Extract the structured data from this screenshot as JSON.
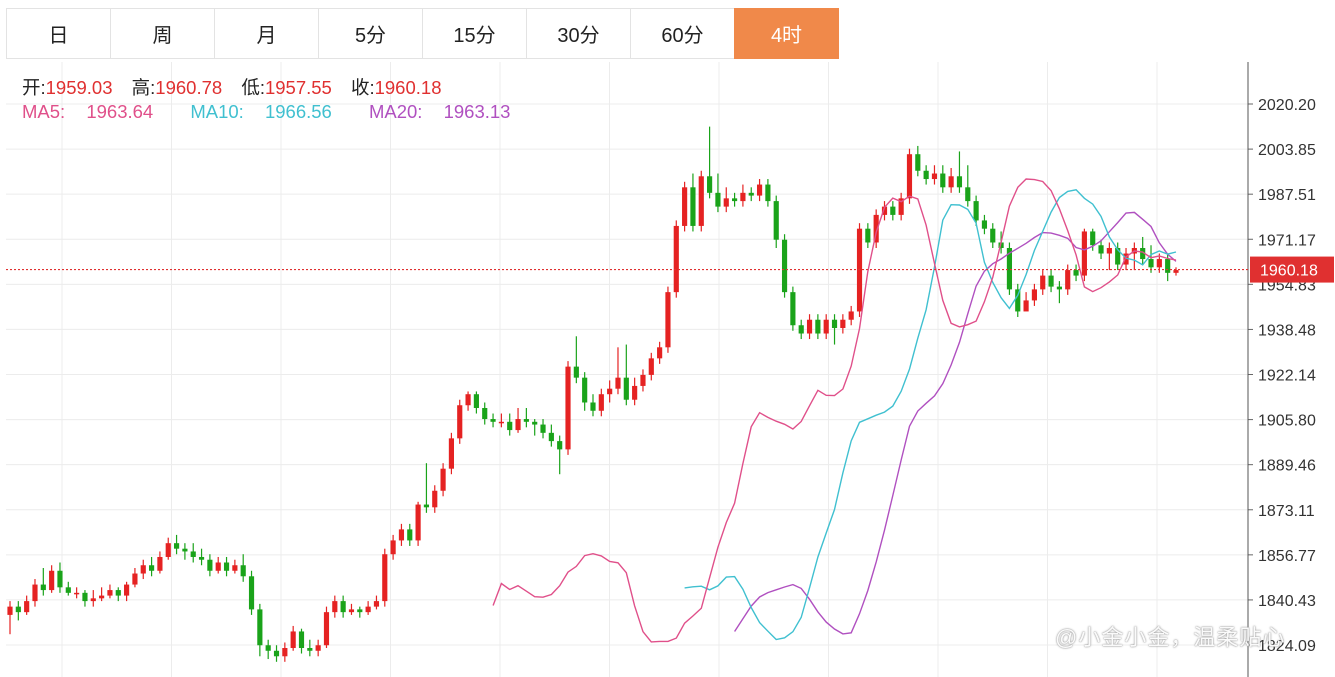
{
  "tabs": [
    "日",
    "周",
    "月",
    "5分",
    "15分",
    "30分",
    "60分",
    "4时"
  ],
  "active_tab": "4时",
  "legend": {
    "open_label": "开:",
    "open": "1959.03",
    "high_label": "高:",
    "high": "1960.78",
    "low_label": "低:",
    "low": "1957.55",
    "close_label": "收:",
    "close": "1960.18",
    "ma5_label": "MA5:",
    "ma5": "1963.64",
    "ma10_label": "MA10:",
    "ma10": "1966.56",
    "ma20_label": "MA20:",
    "ma20": "1963.13"
  },
  "colors": {
    "up": "#e52222",
    "down": "#1aa31a",
    "ma5": "#e0508a",
    "ma10": "#40c0d0",
    "ma20": "#b050c0",
    "active_tab": "#f0894a",
    "price_line": "#e03030"
  },
  "watermark": "@小金小金，温柔贴心",
  "chart_data": {
    "type": "candlestick",
    "y_ticks": [
      "2020.20",
      "2003.85",
      "1987.51",
      "1971.17",
      "1954.83",
      "1938.48",
      "1922.14",
      "1905.80",
      "1889.46",
      "1873.11",
      "1856.77",
      "1840.43",
      "1824.09"
    ],
    "ylim": [
      1822,
      2032
    ],
    "current_price": "1960.18",
    "candles": [
      [
        1835,
        1838,
        1828,
        1840
      ],
      [
        1838,
        1836,
        1833,
        1840
      ],
      [
        1836,
        1840,
        1835,
        1842
      ],
      [
        1840,
        1846,
        1838,
        1848
      ],
      [
        1846,
        1844,
        1842,
        1852
      ],
      [
        1844,
        1851,
        1843,
        1853
      ],
      [
        1851,
        1845,
        1843,
        1854
      ],
      [
        1845,
        1843,
        1842,
        1847
      ],
      [
        1843,
        1843,
        1841,
        1845
      ],
      [
        1843,
        1840,
        1838,
        1844
      ],
      [
        1840,
        1841,
        1838,
        1844
      ],
      [
        1841,
        1842,
        1840,
        1845
      ],
      [
        1842,
        1844,
        1841,
        1846
      ],
      [
        1844,
        1842,
        1840,
        1845
      ],
      [
        1842,
        1846,
        1840,
        1847
      ],
      [
        1846,
        1850,
        1845,
        1852
      ],
      [
        1850,
        1853,
        1848,
        1855
      ],
      [
        1853,
        1851,
        1849,
        1856
      ],
      [
        1851,
        1856,
        1850,
        1858
      ],
      [
        1856,
        1861,
        1855,
        1863
      ],
      [
        1861,
        1859,
        1857,
        1864
      ],
      [
        1859,
        1858,
        1855,
        1861
      ],
      [
        1858,
        1856,
        1854,
        1861
      ],
      [
        1856,
        1855,
        1853,
        1859
      ],
      [
        1855,
        1851,
        1849,
        1857
      ],
      [
        1851,
        1854,
        1850,
        1856
      ],
      [
        1854,
        1851,
        1849,
        1856
      ],
      [
        1851,
        1853,
        1850,
        1855
      ],
      [
        1853,
        1849,
        1847,
        1857
      ],
      [
        1849,
        1837,
        1835,
        1851
      ],
      [
        1837,
        1824,
        1820,
        1839
      ],
      [
        1824,
        1822,
        1819,
        1826
      ],
      [
        1822,
        1820,
        1818,
        1824
      ],
      [
        1820,
        1823,
        1818,
        1825
      ],
      [
        1823,
        1829,
        1822,
        1831
      ],
      [
        1829,
        1823,
        1821,
        1830
      ],
      [
        1823,
        1822,
        1820,
        1826
      ],
      [
        1822,
        1824,
        1820,
        1826
      ],
      [
        1824,
        1836,
        1823,
        1838
      ],
      [
        1836,
        1840,
        1834,
        1842
      ],
      [
        1840,
        1836,
        1834,
        1842
      ],
      [
        1836,
        1837,
        1835,
        1839
      ],
      [
        1837,
        1836,
        1834,
        1838
      ],
      [
        1836,
        1838,
        1835,
        1840
      ],
      [
        1838,
        1840,
        1837,
        1842
      ],
      [
        1840,
        1857,
        1838,
        1859
      ],
      [
        1857,
        1862,
        1855,
        1864
      ],
      [
        1862,
        1866,
        1860,
        1868
      ],
      [
        1866,
        1862,
        1860,
        1868
      ],
      [
        1862,
        1875,
        1860,
        1876
      ],
      [
        1875,
        1874,
        1872,
        1890
      ],
      [
        1874,
        1880,
        1872,
        1882
      ],
      [
        1880,
        1888,
        1878,
        1890
      ],
      [
        1888,
        1899,
        1886,
        1901
      ],
      [
        1899,
        1911,
        1897,
        1913
      ],
      [
        1911,
        1915,
        1909,
        1916
      ],
      [
        1915,
        1910,
        1908,
        1916
      ],
      [
        1910,
        1906,
        1904,
        1912
      ],
      [
        1906,
        1905,
        1903,
        1908
      ],
      [
        1905,
        1905,
        1903,
        1908
      ],
      [
        1905,
        1902,
        1900,
        1908
      ],
      [
        1902,
        1906,
        1901,
        1910
      ],
      [
        1906,
        1905,
        1903,
        1910
      ],
      [
        1905,
        1904,
        1900,
        1906
      ],
      [
        1904,
        1901,
        1899,
        1906
      ],
      [
        1901,
        1898,
        1896,
        1904
      ],
      [
        1898,
        1895,
        1886,
        1900
      ],
      [
        1895,
        1925,
        1893,
        1927
      ],
      [
        1925,
        1921,
        1919,
        1936
      ],
      [
        1921,
        1912,
        1909,
        1923
      ],
      [
        1912,
        1909,
        1907,
        1915
      ],
      [
        1909,
        1915,
        1907,
        1917
      ],
      [
        1915,
        1917,
        1912,
        1920
      ],
      [
        1917,
        1921,
        1915,
        1932
      ],
      [
        1921,
        1913,
        1911,
        1933
      ],
      [
        1913,
        1918,
        1911,
        1921
      ],
      [
        1918,
        1922,
        1916,
        1924
      ],
      [
        1922,
        1928,
        1920,
        1930
      ],
      [
        1928,
        1932,
        1926,
        1934
      ],
      [
        1932,
        1952,
        1930,
        1954
      ],
      [
        1952,
        1976,
        1950,
        1978
      ],
      [
        1976,
        1990,
        1974,
        1992
      ],
      [
        1990,
        1976,
        1974,
        1995
      ],
      [
        1976,
        1994,
        1974,
        1996
      ],
      [
        1994,
        1988,
        1986,
        2012
      ],
      [
        1988,
        1983,
        1981,
        1995
      ],
      [
        1983,
        1986,
        1981,
        1990
      ],
      [
        1986,
        1985,
        1983,
        1988
      ],
      [
        1985,
        1988,
        1983,
        1991
      ],
      [
        1988,
        1987,
        1985,
        1990
      ],
      [
        1987,
        1991,
        1985,
        1993
      ],
      [
        1991,
        1985,
        1983,
        1993
      ],
      [
        1985,
        1971,
        1968,
        1987
      ],
      [
        1971,
        1952,
        1950,
        1973
      ],
      [
        1952,
        1940,
        1938,
        1954
      ],
      [
        1940,
        1937,
        1935,
        1942
      ],
      [
        1937,
        1942,
        1935,
        1944
      ],
      [
        1942,
        1937,
        1935,
        1944
      ],
      [
        1937,
        1942,
        1935,
        1944
      ],
      [
        1942,
        1939,
        1933,
        1944
      ],
      [
        1939,
        1942,
        1937,
        1944
      ],
      [
        1942,
        1945,
        1940,
        1947
      ],
      [
        1945,
        1975,
        1943,
        1977
      ],
      [
        1975,
        1970,
        1968,
        1977
      ],
      [
        1970,
        1980,
        1968,
        1982
      ],
      [
        1980,
        1983,
        1978,
        1985
      ],
      [
        1983,
        1980,
        1978,
        1985
      ],
      [
        1980,
        1986,
        1978,
        1988
      ],
      [
        1986,
        2002,
        1984,
        2004
      ],
      [
        2002,
        1996,
        1994,
        2005
      ],
      [
        1996,
        1993,
        1991,
        1998
      ],
      [
        1993,
        1995,
        1991,
        1998
      ],
      [
        1995,
        1990,
        1988,
        1998
      ],
      [
        1990,
        1994,
        1988,
        1997
      ],
      [
        1994,
        1990,
        1988,
        2003
      ],
      [
        1990,
        1985,
        1983,
        1998
      ],
      [
        1985,
        1978,
        1976,
        1987
      ],
      [
        1978,
        1975,
        1973,
        1980
      ],
      [
        1975,
        1970,
        1968,
        1977
      ],
      [
        1970,
        1968,
        1966,
        1974
      ],
      [
        1968,
        1953,
        1951,
        1970
      ],
      [
        1953,
        1945,
        1943,
        1955
      ],
      [
        1945,
        1949,
        1946,
        1952
      ],
      [
        1949,
        1953,
        1947,
        1955
      ],
      [
        1953,
        1958,
        1951,
        1960
      ],
      [
        1958,
        1954,
        1952,
        1960
      ],
      [
        1954,
        1953,
        1948,
        1956
      ],
      [
        1953,
        1960,
        1951,
        1962
      ],
      [
        1960,
        1958,
        1956,
        1962
      ],
      [
        1958,
        1974,
        1956,
        1975
      ],
      [
        1974,
        1969,
        1967,
        1975
      ],
      [
        1969,
        1966,
        1964,
        1971
      ],
      [
        1966,
        1968,
        1960,
        1970
      ],
      [
        1968,
        1962,
        1960,
        1970
      ],
      [
        1962,
        1966,
        1960,
        1968
      ],
      [
        1966,
        1968,
        1960,
        1970
      ],
      [
        1968,
        1964,
        1962,
        1972
      ],
      [
        1964,
        1961,
        1959,
        1969
      ],
      [
        1961,
        1964,
        1959,
        1966
      ],
      [
        1964,
        1959,
        1956,
        1966
      ],
      [
        1959,
        1960,
        1958,
        1961
      ]
    ],
    "ma5": [
      [
        1838.4,
        1846.4,
        1844.2,
        1845.6,
        1843.6,
        1841.6,
        1841.4,
        1842.4,
        1845.6,
        1850.5,
        1852.6,
        1856.5,
        1857.2,
        1856.4,
        1854.4,
        1853.9,
        1850.3,
        1838.3,
        1828.9,
        1825.2,
        1825.4,
        1825.4,
        1826.6,
        1832,
        1834.6,
        1837.4,
        1848.5,
        1859.5,
        1868.5,
        1875.5,
        1889.9,
        1903.2,
        1908.3,
        1906.6,
        1905.2,
        1904.1,
        1902.4,
        1905.1,
        1910.8,
        1916.4,
        1914.6,
        1914.5,
        1916.9,
        1925.2,
        1938.8,
        1959.4,
        1973.7,
        1982.7,
        1986.1,
        1984.8,
        1986.8,
        1985.8,
        1976.3,
        1962.4,
        1949,
        1940.7,
        1939.4,
        1940.2,
        1941.5,
        1948.5,
        1957.4,
        1970.1,
        1983.2,
        1990,
        1993,
        1992.8,
        1992.1,
        1988.8,
        1982.2,
        1974.3,
        1965.5,
        1953.9,
        1952.2,
        1953.6,
        1955.7,
        1958.2,
        1964.8,
        1966.9,
        1966.5,
        1964.5,
        1965.1,
        1964.2,
        1963.6
      ]
    ],
    "ma10": [
      [
        1844.8,
        1845.2,
        1845.4,
        1844.1,
        1845.5,
        1848.7,
        1848.9,
        1844.3,
        1837.7,
        1832.2,
        1829.1,
        1826.1,
        1826.7,
        1828.9,
        1834.1,
        1844.8,
        1856,
        1864.7,
        1873.2,
        1886.5,
        1898.1,
        1904.8,
        1906.1,
        1907.4,
        1908.5,
        1910.7,
        1916.1,
        1924.1,
        1935.3,
        1945.6,
        1961.1,
        1978.1,
        1983.7,
        1983.6,
        1982,
        1977,
        1962.8,
        1955.5,
        1950,
        1946.1,
        1950.9,
        1958.4,
        1967.1,
        1974,
        1981,
        1986.3,
        1988.5,
        1989.1,
        1986,
        1983.9,
        1979.5,
        1972,
        1967.4,
        1964.3,
        1963.6,
        1961.9,
        1965.6,
        1966.9,
        1965.8,
        1966.56
      ]
    ],
    "ma20": [
      [
        1829,
        1833.6,
        1838.2,
        1841.5,
        1843.1,
        1844.1,
        1845.1,
        1846,
        1844.6,
        1840.7,
        1836.1,
        1832.4,
        1829.9,
        1828.1,
        1828.5,
        1835.4,
        1843.8,
        1854.2,
        1865.7,
        1878.3,
        1891.2,
        1903.4,
        1908.9,
        1911.7,
        1914.4,
        1918.8,
        1925.6,
        1933.8,
        1944.2,
        1954.2,
        1959.6,
        1962.3,
        1964,
        1966.1,
        1967.9,
        1969.7,
        1971.8,
        1973.6,
        1973.4,
        1972.6,
        1971.5,
        1968.2,
        1967.3,
        1968.6,
        1970.6,
        1973.9,
        1977.2,
        1980.7,
        1980.9,
        1978.4,
        1975.8,
        1969.9,
        1965.7,
        1963.13
      ]
    ]
  }
}
